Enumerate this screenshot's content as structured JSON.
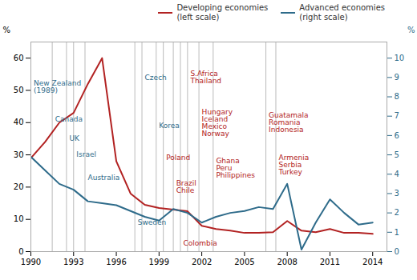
{
  "chart_data": {
    "type": "line",
    "x": [
      1990,
      1991,
      1992,
      1993,
      1994,
      1995,
      1996,
      1997,
      1998,
      1999,
      2000,
      2001,
      2002,
      2003,
      2004,
      2005,
      2006,
      2007,
      2008,
      2009,
      2010,
      2011,
      2012,
      2013,
      2014
    ],
    "xlim": [
      1990,
      2015
    ],
    "xticks": [
      1990,
      1993,
      1996,
      1999,
      2002,
      2005,
      2008,
      2011,
      2014
    ],
    "ylim": [
      0,
      65
    ],
    "yticks": [
      0,
      10,
      20,
      30,
      40,
      50,
      60
    ],
    "y2lim": [
      0,
      10.833
    ],
    "y2ticks": [
      0,
      1,
      2,
      3,
      4,
      5,
      6,
      7,
      8,
      9,
      10
    ],
    "ylabel": "%",
    "y2label": "%",
    "grid": false,
    "legend": "upper right",
    "series": [
      {
        "name": "Developing economies\n(left scale)",
        "color": "#b22222",
        "values": [
          29.0,
          34.0,
          40.0,
          43.0,
          52.0,
          60.0,
          28.0,
          18.0,
          14.5,
          13.5,
          13.0,
          12.5,
          8.0,
          7.0,
          6.5,
          5.8,
          5.8,
          6.0,
          9.5,
          6.5,
          6.0,
          7.0,
          5.8,
          5.8,
          5.5
        ]
      },
      {
        "name": "Advanced economies\n(right scale)",
        "color": "#2e6b8a",
        "axis": "y2",
        "values": [
          4.9,
          4.2,
          3.5,
          3.2,
          2.6,
          2.5,
          2.4,
          2.1,
          1.8,
          1.6,
          2.2,
          2.0,
          1.5,
          1.8,
          2.0,
          2.1,
          2.3,
          2.2,
          3.5,
          0.1,
          1.5,
          2.7,
          2.0,
          1.4,
          1.5
        ]
      }
    ],
    "annotations": [
      {
        "line_x": 1990.0,
        "text": "New Zealand\n(1989)",
        "color": "#2e6b8a",
        "x": 1990.2,
        "y": 51
      },
      {
        "line_x": 1991.5,
        "text": "Canada",
        "color": "#2e6b8a",
        "x": 1991.7,
        "y": 41
      },
      {
        "line_x": 1992.5,
        "text": "UK",
        "color": "#2e6b8a",
        "x": 1992.7,
        "y": 35
      },
      {
        "line_x": 1993.0,
        "text": "Israel",
        "color": "#2e6b8a",
        "x": 1993.2,
        "y": 30
      },
      {
        "line_x": 1993.8,
        "text": "Australia",
        "color": "#2e6b8a",
        "x": 1994.0,
        "y": 23
      },
      {
        "line_x": 1997.3,
        "text": "Sweden",
        "color": "#2e6b8a",
        "x": 1997.5,
        "y": 9
      },
      {
        "line_x": 1997.8,
        "text": "Czech",
        "color": "#2e6b8a",
        "x": 1998.0,
        "y": 54
      },
      {
        "line_x": 1998.8,
        "text": "Korea",
        "color": "#2e6b8a",
        "x": 1999.0,
        "y": 39
      },
      {
        "line_x": 1999.3,
        "text": "Poland",
        "color": "#b22222",
        "x": 1999.5,
        "y": 29
      },
      {
        "line_x": 2000.0,
        "text": "Brazil\nChile",
        "color": "#b22222",
        "x": 2000.2,
        "y": 20
      },
      {
        "line_x": 2000.5,
        "text": "Colombia",
        "color": "#b22222",
        "x": 2000.7,
        "y": 2.5
      },
      {
        "line_x": 2001.0,
        "text": "S.Africa\nThailand",
        "color": "#b22222",
        "x": 2001.2,
        "y": 54
      },
      {
        "line_x": 2001.8,
        "text": "Hungary\nIceland\nMexico\nNorway",
        "color": "#b22222",
        "x": 2002.0,
        "y": 40
      },
      {
        "line_x": 2002.8,
        "text": "Ghana\nPeru\nPhilippines",
        "color": "#b22222",
        "x": 2003.0,
        "y": 26
      },
      {
        "line_x": 2006.5,
        "text": "Guatamala\nRomania\nIndonesia",
        "color": "#b22222",
        "x": 2006.7,
        "y": 40
      },
      {
        "line_x": 2007.2,
        "text": "Armenia\nSerbia\nTurkey",
        "color": "#b22222",
        "x": 2007.4,
        "y": 27
      }
    ]
  }
}
